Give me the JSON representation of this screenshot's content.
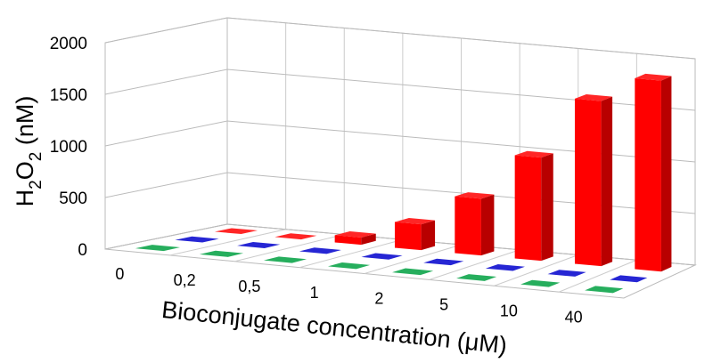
{
  "chart_data": {
    "type": "bar3d",
    "y_label": "H2O2 (nM)",
    "x_label": "Bioconjugate concentration (μM)",
    "categories": [
      "0",
      "0,2",
      "0,5",
      "1",
      "2",
      "5",
      "10",
      "40"
    ],
    "series": [
      {
        "color": "#ff0000",
        "values": [
          0,
          0,
          70,
          250,
          550,
          1000,
          1600,
          1850
        ]
      },
      {
        "color": "#0000cc",
        "values": [
          0,
          0,
          0,
          0,
          0,
          0,
          0,
          0
        ]
      },
      {
        "color": "#00a040",
        "values": [
          0,
          0,
          0,
          0,
          0,
          0,
          0,
          0
        ]
      }
    ],
    "ylim": [
      0,
      2000
    ],
    "yticks": [
      0,
      500,
      1000,
      1500,
      2000
    ],
    "grid": true
  }
}
